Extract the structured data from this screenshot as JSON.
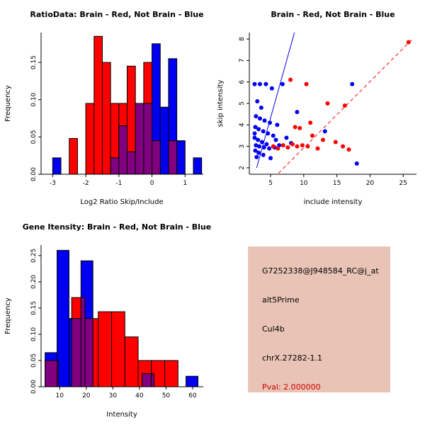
{
  "window": {
    "background": "#ffffff"
  },
  "colors": {
    "red": "#ff0000",
    "blue": "#0000f0",
    "overlap": "#800080",
    "axis": "#000000"
  },
  "chart_data": [
    {
      "type": "bar",
      "title": "RatioData: Brain - Red, Not Brain - Blue",
      "xlabel": "Log2 Ratio Skip/Include",
      "ylabel": "Frequency",
      "xlim": [
        -3.35,
        1.55
      ],
      "ylim": [
        0,
        0.19
      ],
      "xticks": {
        "values": [
          -3,
          -2,
          -1,
          0,
          1
        ],
        "labels": [
          "-3",
          "-2",
          "-1",
          "0",
          "1"
        ]
      },
      "yticks": {
        "values": [
          0,
          0.05,
          0.1,
          0.15
        ],
        "labels": [
          "0.00",
          "0.05",
          "0.10",
          "0.15"
        ]
      },
      "overlap_color": "#800080",
      "series": [
        {
          "name": "Brain",
          "color": "#ff0000",
          "bins": [
            {
              "x": -2.5,
              "w": 0.25,
              "h": 0.048
            },
            {
              "x": -2.0,
              "w": 0.25,
              "h": 0.095
            },
            {
              "x": -1.75,
              "w": 0.25,
              "h": 0.185
            },
            {
              "x": -1.5,
              "w": 0.25,
              "h": 0.15
            },
            {
              "x": -1.25,
              "w": 0.25,
              "h": 0.095
            },
            {
              "x": -1.0,
              "w": 0.25,
              "h": 0.095
            },
            {
              "x": -0.75,
              "w": 0.25,
              "h": 0.145
            },
            {
              "x": -0.5,
              "w": 0.25,
              "h": 0.095
            },
            {
              "x": -0.25,
              "w": 0.25,
              "h": 0.15
            },
            {
              "x": 0.0,
              "w": 0.25,
              "h": 0.045
            },
            {
              "x": 0.5,
              "w": 0.25,
              "h": 0.045
            }
          ]
        },
        {
          "name": "Not Brain",
          "color": "#0000f0",
          "bins": [
            {
              "x": -3.0,
              "w": 0.25,
              "h": 0.022
            },
            {
              "x": -1.25,
              "w": 0.25,
              "h": 0.022
            },
            {
              "x": -1.0,
              "w": 0.25,
              "h": 0.065
            },
            {
              "x": -0.75,
              "w": 0.25,
              "h": 0.03
            },
            {
              "x": -0.5,
              "w": 0.25,
              "h": 0.095
            },
            {
              "x": -0.25,
              "w": 0.25,
              "h": 0.095
            },
            {
              "x": 0.0,
              "w": 0.25,
              "h": 0.175
            },
            {
              "x": 0.25,
              "w": 0.25,
              "h": 0.09
            },
            {
              "x": 0.5,
              "w": 0.25,
              "h": 0.155
            },
            {
              "x": 0.75,
              "w": 0.25,
              "h": 0.045
            },
            {
              "x": 1.25,
              "w": 0.25,
              "h": 0.022
            }
          ]
        }
      ]
    },
    {
      "type": "scatter",
      "title": "Brain - Red, Not Brain - Blue",
      "xlabel": "include intensity",
      "ylabel": "skip intensity",
      "xlim": [
        1.8,
        27
      ],
      "ylim": [
        1.7,
        8.3
      ],
      "xticks": {
        "values": [
          5,
          10,
          15,
          20,
          25
        ],
        "labels": [
          "5",
          "10",
          "15",
          "20",
          "25"
        ]
      },
      "yticks": {
        "values": [
          2,
          3,
          4,
          5,
          6,
          7,
          8
        ],
        "labels": [
          "2",
          "3",
          "4",
          "5",
          "6",
          "7",
          "8"
        ]
      },
      "series": [
        {
          "name": "Not Brain",
          "color": "#0000f0",
          "points": [
            [
              2.6,
              5.9
            ],
            [
              3.4,
              5.9
            ],
            [
              4.3,
              5.9
            ],
            [
              5.2,
              5.7
            ],
            [
              6.8,
              5.9
            ],
            [
              3.0,
              5.1
            ],
            [
              3.6,
              4.8
            ],
            [
              2.8,
              4.4
            ],
            [
              3.4,
              4.3
            ],
            [
              4.1,
              4.2
            ],
            [
              4.9,
              4.1
            ],
            [
              2.7,
              3.9
            ],
            [
              3.2,
              3.8
            ],
            [
              3.9,
              3.7
            ],
            [
              4.6,
              3.6
            ],
            [
              5.4,
              3.5
            ],
            [
              2.6,
              3.4
            ],
            [
              3.1,
              3.3
            ],
            [
              3.7,
              3.2
            ],
            [
              4.4,
              3.1
            ],
            [
              2.8,
              3.05
            ],
            [
              3.3,
              3.0
            ],
            [
              4.0,
              2.95
            ],
            [
              4.8,
              2.9
            ],
            [
              5.6,
              2.95
            ],
            [
              6.3,
              3.05
            ],
            [
              2.7,
              2.8
            ],
            [
              3.2,
              2.7
            ],
            [
              3.9,
              2.6
            ],
            [
              2.9,
              2.5
            ],
            [
              5.0,
              2.45
            ],
            [
              7.4,
              3.4
            ],
            [
              8.1,
              3.15
            ],
            [
              9.0,
              4.6
            ],
            [
              13.2,
              3.7
            ],
            [
              17.3,
              5.9
            ],
            [
              18.0,
              2.2
            ],
            [
              6.0,
              4.0
            ],
            [
              5.8,
              3.3
            ],
            [
              2.6,
              3.6
            ]
          ]
        },
        {
          "name": "Brain",
          "color": "#ff0000",
          "points": [
            [
              5.4,
              3.0
            ],
            [
              6.1,
              2.9
            ],
            [
              6.9,
              3.05
            ],
            [
              7.6,
              2.95
            ],
            [
              8.3,
              3.1
            ],
            [
              9.0,
              3.0
            ],
            [
              9.8,
              3.05
            ],
            [
              8.7,
              3.9
            ],
            [
              9.4,
              3.85
            ],
            [
              10.6,
              3.0
            ],
            [
              11.3,
              3.5
            ],
            [
              12.1,
              2.9
            ],
            [
              12.9,
              3.3
            ],
            [
              13.6,
              5.0
            ],
            [
              14.8,
              3.2
            ],
            [
              15.9,
              3.0
            ],
            [
              16.8,
              2.85
            ],
            [
              16.2,
              4.9
            ],
            [
              8.0,
              6.1
            ],
            [
              10.4,
              5.9
            ],
            [
              25.8,
              7.85
            ],
            [
              11.0,
              4.1
            ]
          ]
        }
      ],
      "lines": [
        {
          "name": "not-brain-fit",
          "color": "#0000f0",
          "dash": "",
          "x1": 2.9,
          "y1": 2.0,
          "x2": 8.6,
          "y2": 8.3
        },
        {
          "name": "brain-fit",
          "color": "#ff0000",
          "dash": "5 4",
          "x1": 6.2,
          "y1": 1.75,
          "x2": 26.4,
          "y2": 8.0
        }
      ]
    },
    {
      "type": "bar",
      "title": "Gene Itensity: Brain - Red, Not Brain - Blue",
      "xlabel": "Intensity",
      "ylabel": "Frequency",
      "xlim": [
        3,
        64
      ],
      "ylim": [
        0,
        0.27
      ],
      "xticks": {
        "values": [
          10,
          20,
          30,
          40,
          50,
          60
        ],
        "labels": [
          "10",
          "20",
          "30",
          "40",
          "50",
          "60"
        ]
      },
      "yticks": {
        "values": [
          0,
          0.05,
          0.1,
          0.15,
          0.2,
          0.25
        ],
        "labels": [
          "0.00",
          "0.05",
          "0.10",
          "0.15",
          "0.20",
          "0.25"
        ]
      },
      "overlap_color": "#800080",
      "series": [
        {
          "name": "Brain",
          "color": "#ff0000",
          "bins": [
            {
              "x": 4.5,
              "w": 5,
              "h": 0.05
            },
            {
              "x": 14.5,
              "w": 5,
              "h": 0.17
            },
            {
              "x": 19.5,
              "w": 5,
              "h": 0.13
            },
            {
              "x": 24.5,
              "w": 5,
              "h": 0.143
            },
            {
              "x": 29.5,
              "w": 5,
              "h": 0.143
            },
            {
              "x": 34.5,
              "w": 5,
              "h": 0.095
            },
            {
              "x": 39.5,
              "w": 5,
              "h": 0.05
            },
            {
              "x": 44.5,
              "w": 5,
              "h": 0.05
            },
            {
              "x": 49.5,
              "w": 5,
              "h": 0.05
            }
          ]
        },
        {
          "name": "Not Brain",
          "color": "#0000f0",
          "bins": [
            {
              "x": 4.5,
              "w": 4.5,
              "h": 0.065
            },
            {
              "x": 9.0,
              "w": 4.5,
              "h": 0.26
            },
            {
              "x": 13.5,
              "w": 4.5,
              "h": 0.13
            },
            {
              "x": 18.0,
              "w": 4.5,
              "h": 0.24
            },
            {
              "x": 41.0,
              "w": 4.5,
              "h": 0.025
            },
            {
              "x": 57.5,
              "w": 4.5,
              "h": 0.02
            }
          ]
        }
      ]
    }
  ],
  "info_box": {
    "bg_color": "#e9c4b6",
    "text_color": "#000000",
    "probe_id": "G7252338@J948584_RC@j_at",
    "splice_type": "alt5Prime",
    "gene": "Cul4b",
    "locus": "chrX.27282-1.1",
    "pval_label": "Pval: 2.000000",
    "pval_color": "#cc0000"
  }
}
